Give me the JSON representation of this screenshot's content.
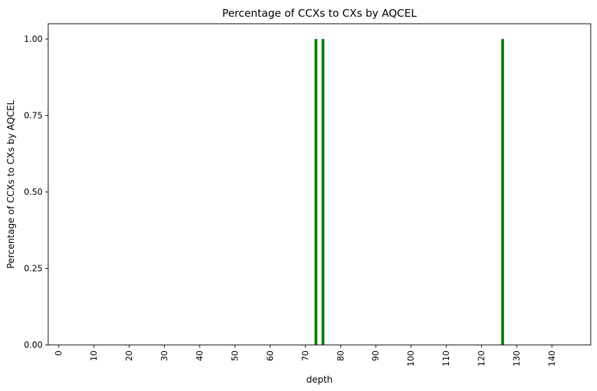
{
  "chart_data": {
    "type": "bar",
    "title": "Percentage of CCXs to CXs by AQCEL",
    "xlabel": "depth",
    "ylabel": "Percentage of CCXs to CXs by AQCEL",
    "ylim": [
      0,
      1.05
    ],
    "xlim": [
      -3,
      151
    ],
    "x_ticks": [
      "0",
      "10",
      "20",
      "30",
      "40",
      "50",
      "60",
      "70",
      "80",
      "90",
      "100",
      "110",
      "120",
      "130",
      "140"
    ],
    "y_ticks": [
      "0.00",
      "0.25",
      "0.50",
      "0.75",
      "1.00"
    ],
    "x_tick_rotation": "vertical",
    "grid": false,
    "bar_color": "#008000",
    "bars": [
      {
        "x": 73,
        "value": 1.0
      },
      {
        "x": 75,
        "value": 1.0
      },
      {
        "x": 126,
        "value": 1.0
      }
    ]
  }
}
